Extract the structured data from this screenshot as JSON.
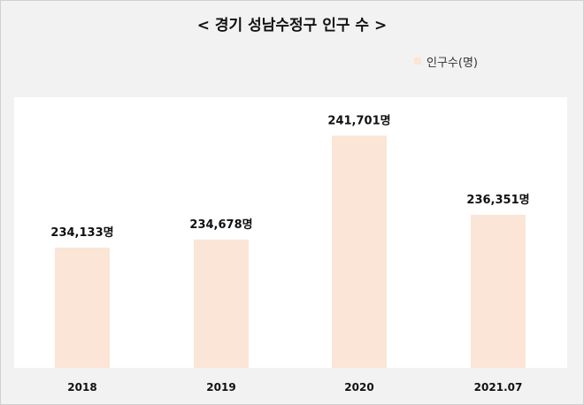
{
  "colors": {
    "bar": "#fbe5d6",
    "background": "#f2f2f2",
    "plot_bg": "#ffffff"
  },
  "chart_data": {
    "type": "bar",
    "title": "< 경기 성남수정구 인구 수 >",
    "categories": [
      "2018",
      "2019",
      "2020",
      "2021.07"
    ],
    "series": [
      {
        "name": "인구수(명)",
        "values": [
          234133,
          234678,
          241701,
          236351
        ]
      }
    ],
    "data_labels": [
      "234,133명",
      "234,678명",
      "241,701명",
      "236,351명"
    ],
    "ylim": [
      226000,
      244000
    ],
    "legend_position": "top-right",
    "grid": false
  }
}
